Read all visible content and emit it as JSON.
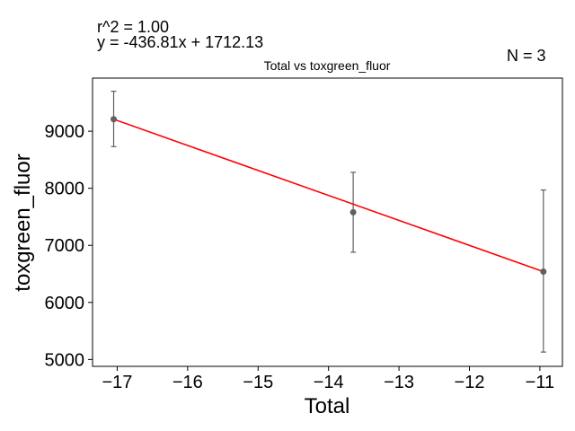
{
  "chart_data": {
    "type": "scatter",
    "title": "Total vs toxgreen_fluor",
    "xlabel": "Total",
    "ylabel": "toxgreen_fluor",
    "xlim": [
      -17.35,
      -10.68
    ],
    "ylim": [
      4880,
      9930
    ],
    "xticks": [
      -17,
      -16,
      -15,
      -14,
      -13,
      -12,
      -11
    ],
    "xtick_labels": [
      "−17",
      "−16",
      "−15",
      "−14",
      "−13",
      "−12",
      "−11"
    ],
    "yticks": [
      5000,
      6000,
      7000,
      8000,
      9000
    ],
    "ytick_labels": [
      "5000",
      "6000",
      "7000",
      "8000",
      "9000"
    ],
    "grid": false,
    "points": [
      {
        "x": -17.05,
        "y": 9210,
        "err_low": 8730,
        "err_high": 9700
      },
      {
        "x": -13.65,
        "y": 7580,
        "err_low": 6880,
        "err_high": 8280
      },
      {
        "x": -10.95,
        "y": 6540,
        "err_low": 5130,
        "err_high": 7970
      }
    ],
    "fit_line": {
      "slope": -436.81,
      "intercept": 1712.13,
      "x_range": [
        -17.05,
        -10.95
      ]
    },
    "colors": {
      "points": "#606060",
      "errorbars": "#606060",
      "fit": "#ff0000"
    }
  },
  "annotations": {
    "r2_text": "r^2 = 1.00",
    "equation_text": "y = -436.81x + 1712.13",
    "n_text": "N = 3"
  }
}
